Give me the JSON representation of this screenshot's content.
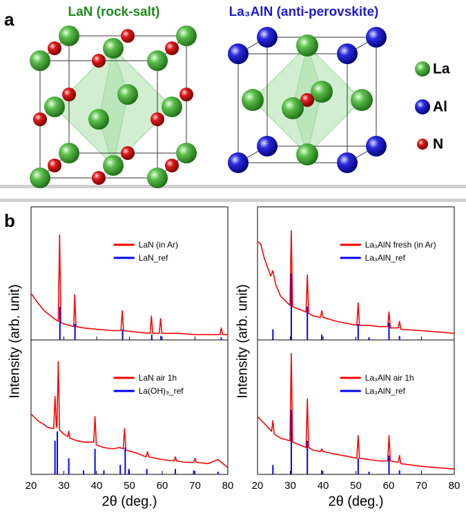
{
  "panel_a": {
    "label": "a",
    "structures": [
      {
        "title": "LaN (rock-salt)"
      },
      {
        "title": "La₃AlN (anti-perovskite)"
      }
    ],
    "legend": [
      "La",
      "Al",
      "N"
    ]
  },
  "panel_b": {
    "label": "b",
    "y_labels": [
      "Intensity (arb. unit)",
      "Intensity (arb. unit)"
    ]
  },
  "chart_data": [
    {
      "type": "line",
      "xlim": [
        20,
        80
      ],
      "ylim": [
        0,
        100
      ],
      "xticks": [
        20,
        30,
        40,
        50,
        60,
        70,
        80
      ],
      "legend": "upper center",
      "series": [
        {
          "name": "LaN (in Ar)",
          "color": "#ff0000",
          "x": [
            20,
            22,
            24,
            26,
            27,
            28.3,
            28.7,
            29.1,
            30,
            33,
            33.3,
            33.7,
            36,
            40,
            45,
            47.4,
            47.8,
            48.2,
            52,
            56.3,
            56.7,
            57.1,
            59.1,
            59.5,
            59.9,
            65,
            70,
            77.6,
            78,
            78.4,
            80
          ],
          "values": [
            35,
            28,
            22,
            18,
            16,
            14,
            79,
            13,
            12,
            10,
            34,
            10,
            9,
            8,
            7,
            7,
            22,
            7,
            6,
            5,
            18,
            5,
            5,
            16,
            5,
            5,
            4,
            4,
            9,
            4,
            4
          ]
        },
        {
          "name": "LaN_ref",
          "color": "#0000ff",
          "style": "sticks",
          "x": [
            28.8,
            33.4,
            47.9,
            56.8,
            59.6,
            78
          ],
          "values": [
            25,
            12,
            8,
            4,
            3,
            2
          ]
        }
      ]
    },
    {
      "type": "line",
      "xlim": [
        20,
        80
      ],
      "ylim": [
        0,
        100
      ],
      "xticks": [
        20,
        30,
        40,
        50,
        60,
        70,
        80
      ],
      "legend": "upper center",
      "series": [
        {
          "name": "La₃AlN fresh (in Ar)",
          "color": "#ff0000",
          "x": [
            20,
            21,
            22,
            23,
            24,
            24.7,
            25.5,
            27,
            29.9,
            30.3,
            30.7,
            34.8,
            35.2,
            35.6,
            37,
            39.2,
            39.6,
            40,
            44,
            50.3,
            50.7,
            51.1,
            54,
            57,
            59.7,
            60.1,
            60.5,
            62.9,
            63.3,
            63.7,
            70,
            75,
            80
          ],
          "values": [
            74,
            72,
            62,
            55,
            48,
            52,
            42,
            33,
            26,
            82,
            25,
            21,
            49,
            20,
            18,
            17,
            22,
            17,
            14,
            11,
            28,
            11,
            11,
            10,
            10,
            21,
            9,
            9,
            14,
            8,
            7,
            6,
            5
          ]
        },
        {
          "name": "La₃AlN_ref",
          "color": "#0000ff",
          "style": "sticks",
          "x": [
            24.7,
            30.3,
            35.2,
            39.6,
            50.7,
            54,
            60.1,
            63.3
          ],
          "values": [
            8,
            50,
            25,
            4,
            12,
            2,
            13,
            3
          ]
        }
      ]
    },
    {
      "type": "line",
      "xlim": [
        20,
        80
      ],
      "ylim": [
        0,
        100
      ],
      "xticks": [
        20,
        30,
        40,
        50,
        60,
        70,
        80
      ],
      "legend": "upper center",
      "xlabel": "2θ (deg.)",
      "series": [
        {
          "name": "LaN air 1h",
          "color": "#ff0000",
          "x": [
            20,
            22,
            24,
            25,
            26.9,
            27.3,
            27.7,
            27.9,
            28.3,
            28.7,
            30,
            31.2,
            31.5,
            31.8,
            34,
            36,
            39.1,
            39.5,
            39.9,
            42,
            45,
            47,
            48.1,
            48.5,
            48.9,
            52,
            55.1,
            55.5,
            55.9,
            60,
            63.6,
            64,
            64.4,
            67,
            69.6,
            70,
            70.4,
            74,
            77,
            80
          ],
          "values": [
            45,
            40,
            37,
            35,
            34,
            58,
            36,
            35,
            84,
            33,
            30,
            28,
            32,
            27,
            25,
            24,
            24,
            43,
            22,
            20,
            19,
            20,
            19,
            34,
            18,
            16,
            13,
            17,
            13,
            11,
            10,
            13,
            10,
            9,
            9,
            12,
            9,
            8,
            11,
            5
          ]
        },
        {
          "name": "La(OH)₃_ref",
          "color": "#0000ff",
          "style": "sticks",
          "x": [
            27.3,
            28.0,
            31.5,
            36,
            39.5,
            42.2,
            47.2,
            48.7,
            49.8,
            55.3,
            64,
            69.6,
            77
          ],
          "values": [
            25,
            32,
            12,
            3,
            19,
            3,
            7,
            20,
            4,
            4,
            4,
            3,
            2
          ]
        }
      ]
    },
    {
      "type": "line",
      "xlim": [
        20,
        80
      ],
      "ylim": [
        0,
        100
      ],
      "xticks": [
        20,
        30,
        40,
        50,
        60,
        70,
        80
      ],
      "legend": "upper center",
      "xlabel": "2θ (deg.)",
      "series": [
        {
          "name": "La₃AlN air 1h",
          "color": "#ff0000",
          "x": [
            20,
            22,
            24.3,
            24.7,
            25.1,
            27,
            29.9,
            30.3,
            30.7,
            34.8,
            35.2,
            35.6,
            37,
            39.2,
            39.6,
            40,
            44,
            50.3,
            50.7,
            51.1,
            54,
            57,
            59.7,
            60.1,
            60.5,
            62.9,
            63.3,
            63.7,
            70,
            75,
            80
          ],
          "values": [
            43,
            38,
            32,
            40,
            30,
            27,
            25,
            90,
            24,
            20,
            56,
            20,
            18,
            17,
            19,
            17,
            15,
            12,
            29,
            12,
            11,
            10,
            10,
            29,
            10,
            9,
            14,
            8,
            6,
            5,
            4
          ]
        },
        {
          "name": "La₃AlN_ref",
          "color": "#0000ff",
          "style": "sticks",
          "x": [
            24.7,
            30.3,
            35.2,
            39.6,
            50.7,
            54,
            60.1,
            63.3
          ],
          "values": [
            7,
            48,
            25,
            3,
            12,
            2,
            14,
            3
          ]
        }
      ]
    }
  ]
}
